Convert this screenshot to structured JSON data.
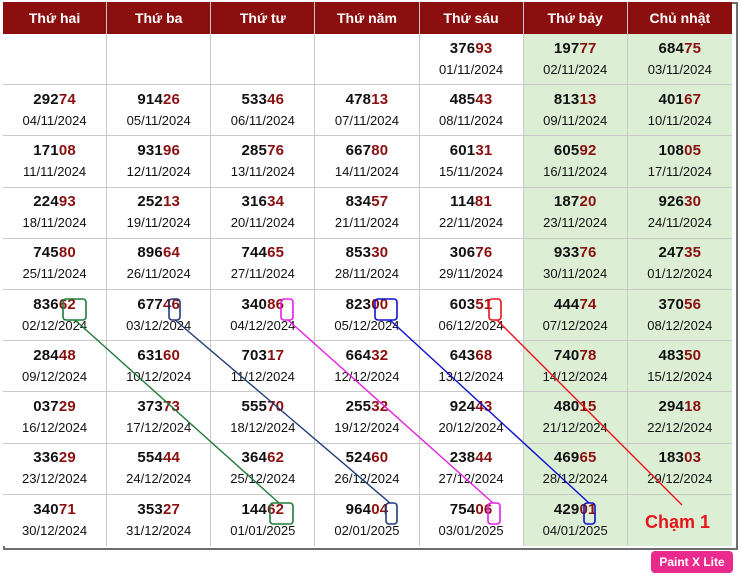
{
  "weekdays": [
    "Thứ hai",
    "Thứ ba",
    "Thứ tư",
    "Thứ năm",
    "Thứ sáu",
    "Thứ bảy",
    "Chủ nhật"
  ],
  "rows": [
    [
      null,
      null,
      null,
      null,
      {
        "num": "37693",
        "date": "01/11/2024"
      },
      {
        "num": "19777",
        "date": "02/11/2024"
      },
      {
        "num": "68475",
        "date": "03/11/2024"
      }
    ],
    [
      {
        "num": "29274",
        "date": "04/11/2024"
      },
      {
        "num": "91426",
        "date": "05/11/2024"
      },
      {
        "num": "53346",
        "date": "06/11/2024"
      },
      {
        "num": "47813",
        "date": "07/11/2024"
      },
      {
        "num": "48543",
        "date": "08/11/2024"
      },
      {
        "num": "81313",
        "date": "09/11/2024"
      },
      {
        "num": "40167",
        "date": "10/11/2024"
      }
    ],
    [
      {
        "num": "17108",
        "date": "11/11/2024"
      },
      {
        "num": "93196",
        "date": "12/11/2024"
      },
      {
        "num": "28576",
        "date": "13/11/2024"
      },
      {
        "num": "66780",
        "date": "14/11/2024"
      },
      {
        "num": "60131",
        "date": "15/11/2024"
      },
      {
        "num": "60592",
        "date": "16/11/2024"
      },
      {
        "num": "10805",
        "date": "17/11/2024"
      }
    ],
    [
      {
        "num": "22493",
        "date": "18/11/2024"
      },
      {
        "num": "25213",
        "date": "19/11/2024"
      },
      {
        "num": "31634",
        "date": "20/11/2024"
      },
      {
        "num": "83457",
        "date": "21/11/2024"
      },
      {
        "num": "11481",
        "date": "22/11/2024"
      },
      {
        "num": "18720",
        "date": "23/11/2024"
      },
      {
        "num": "92630",
        "date": "24/11/2024"
      }
    ],
    [
      {
        "num": "74580",
        "date": "25/11/2024"
      },
      {
        "num": "89664",
        "date": "26/11/2024"
      },
      {
        "num": "74465",
        "date": "27/11/2024"
      },
      {
        "num": "85330",
        "date": "28/11/2024"
      },
      {
        "num": "30676",
        "date": "29/11/2024"
      },
      {
        "num": "93376",
        "date": "30/11/2024"
      },
      {
        "num": "24735",
        "date": "01/12/2024"
      }
    ],
    [
      {
        "num": "83662",
        "date": "02/12/2024"
      },
      {
        "num": "67746",
        "date": "03/12/2024"
      },
      {
        "num": "34086",
        "date": "04/12/2024"
      },
      {
        "num": "82300",
        "date": "05/12/2024"
      },
      {
        "num": "60351",
        "date": "06/12/2024"
      },
      {
        "num": "44474",
        "date": "07/12/2024"
      },
      {
        "num": "37056",
        "date": "08/12/2024"
      }
    ],
    [
      {
        "num": "28448",
        "date": "09/12/2024"
      },
      {
        "num": "63160",
        "date": "10/12/2024"
      },
      {
        "num": "70317",
        "date": "11/12/2024"
      },
      {
        "num": "66432",
        "date": "12/12/2024"
      },
      {
        "num": "64368",
        "date": "13/12/2024"
      },
      {
        "num": "74078",
        "date": "14/12/2024"
      },
      {
        "num": "48350",
        "date": "15/12/2024"
      }
    ],
    [
      {
        "num": "03729",
        "date": "16/12/2024"
      },
      {
        "num": "37373",
        "date": "17/12/2024"
      },
      {
        "num": "55570",
        "date": "18/12/2024"
      },
      {
        "num": "25532",
        "date": "19/12/2024"
      },
      {
        "num": "92443",
        "date": "20/12/2024"
      },
      {
        "num": "48015",
        "date": "21/12/2024"
      },
      {
        "num": "29418",
        "date": "22/12/2024"
      }
    ],
    [
      {
        "num": "33629",
        "date": "23/12/2024"
      },
      {
        "num": "55444",
        "date": "24/12/2024"
      },
      {
        "num": "36462",
        "date": "25/12/2024"
      },
      {
        "num": "52460",
        "date": "26/12/2024"
      },
      {
        "num": "23844",
        "date": "27/12/2024"
      },
      {
        "num": "46965",
        "date": "28/12/2024"
      },
      {
        "num": "18303",
        "date": "29/12/2024"
      }
    ],
    [
      {
        "num": "34071",
        "date": "30/12/2024"
      },
      {
        "num": "35327",
        "date": "31/12/2024"
      },
      {
        "num": "14462",
        "date": "01/01/2025"
      },
      {
        "num": "96404",
        "date": "02/01/2025"
      },
      {
        "num": "75406",
        "date": "03/01/2025"
      },
      {
        "num": "42901",
        "date": "04/01/2025"
      },
      null
    ]
  ],
  "annotation_label": "Chạm 1",
  "watermark": "Paint X Lite",
  "colors": {
    "header_bg": "#8b0f0f",
    "tail_digits": "#8b0f0f",
    "weekend_bg": "#dcefd5",
    "green_line": "#1e7b3a",
    "navy_line": "#1f3d7a",
    "magenta_line": "#e61ee6",
    "blue_line": "#1010d0",
    "red_line": "#e8141b"
  }
}
